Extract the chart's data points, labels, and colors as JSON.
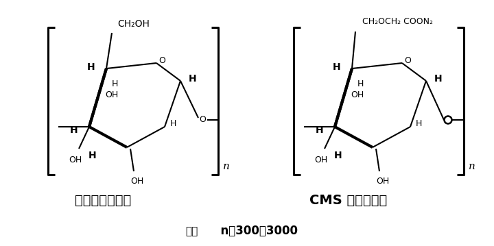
{
  "bg_color": "#ffffff",
  "left_label": "淀粉的分子结构",
  "right_label": "CMS 的分子结构",
  "note_prefix": "注：",
  "note_body": "  n＝300～3000",
  "left_top_label": "CH₂OH",
  "right_top_label": "CH₂OCH₂ COON₂",
  "font_size_label": 14,
  "font_size_note": 11,
  "font_size_atom": 9,
  "lw": 1.5,
  "lw_thick": 3.0,
  "lw_bracket": 2.2
}
